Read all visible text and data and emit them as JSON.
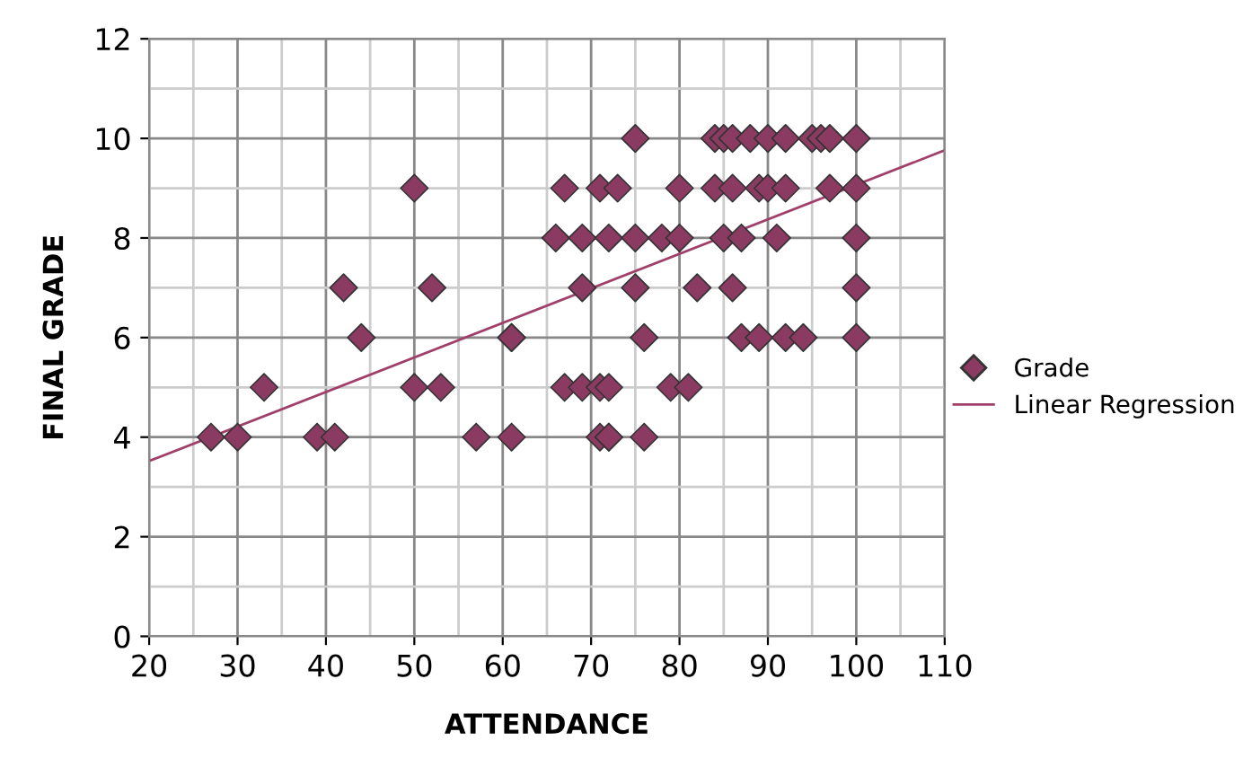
{
  "chart_data": {
    "type": "scatter",
    "xlabel": "ATTENDANCE",
    "ylabel": "FINAL GRADE",
    "xlim": [
      20,
      110
    ],
    "xticks": [
      20,
      30,
      40,
      50,
      60,
      70,
      80,
      90,
      100,
      110
    ],
    "ylim": [
      0,
      12
    ],
    "yticks": [
      0,
      2,
      4,
      6,
      8,
      10,
      12
    ],
    "grid": true,
    "legend": "right",
    "series": [
      {
        "name": "Grade",
        "marker": "diamond",
        "color": "#8b3a62",
        "x": [
          27,
          30,
          33,
          39,
          41,
          42,
          44,
          50,
          50,
          52,
          53,
          57,
          61,
          61,
          67,
          66,
          69,
          69,
          67,
          69,
          71,
          72,
          72,
          76,
          75,
          84,
          85,
          86,
          88,
          90,
          92,
          95,
          96,
          97,
          100,
          71,
          73,
          80,
          84,
          86,
          89,
          90,
          92,
          97,
          100,
          72,
          75,
          78,
          80,
          85,
          87,
          91,
          100,
          75,
          82,
          86,
          100,
          61,
          76,
          87,
          89,
          92,
          94,
          100,
          71,
          72,
          79,
          81
        ],
        "values": [
          4,
          4,
          5,
          4,
          4,
          7,
          6,
          9,
          5,
          7,
          5,
          4,
          4,
          6,
          9,
          8,
          8,
          7,
          5,
          5,
          4,
          4,
          4,
          4,
          10,
          10,
          10,
          10,
          10,
          10,
          10,
          10,
          10,
          10,
          10,
          9,
          9,
          9,
          9,
          9,
          9,
          9,
          9,
          9,
          9,
          8,
          8,
          8,
          8,
          8,
          8,
          8,
          8,
          7,
          7,
          7,
          7,
          6,
          6,
          6,
          6,
          6,
          6,
          6,
          5,
          5,
          5,
          5
        ]
      },
      {
        "name": "Linear Regression",
        "type": "line",
        "color": "#a0406a",
        "x": [
          20,
          110
        ],
        "values": [
          3.52,
          9.76
        ]
      }
    ]
  }
}
